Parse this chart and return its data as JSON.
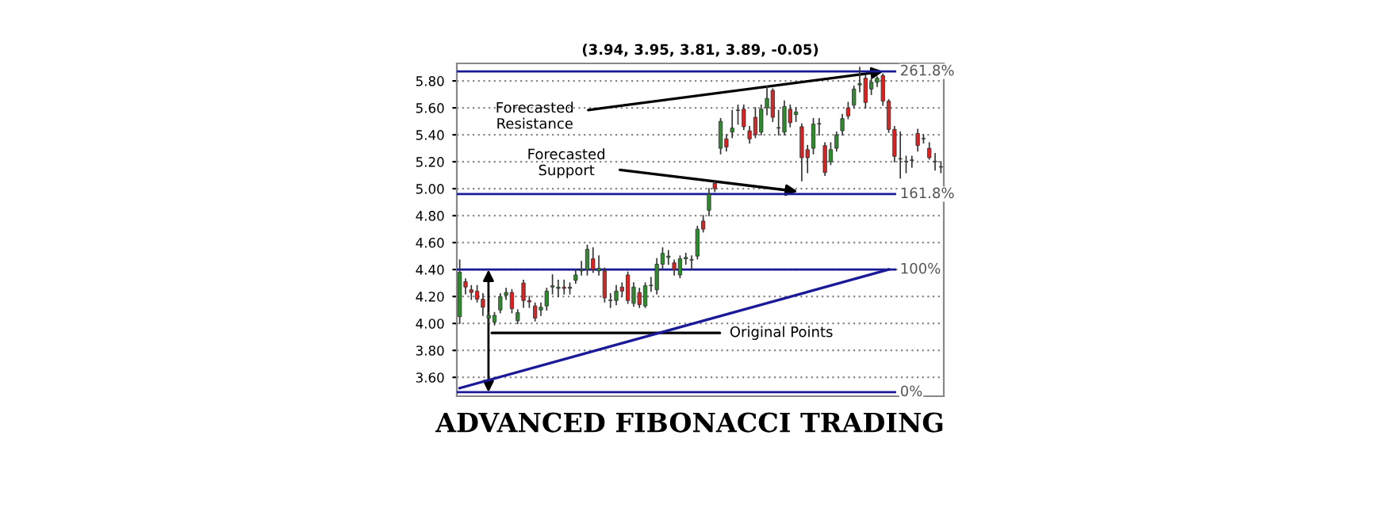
{
  "chart_data": {
    "type": "candlestick",
    "title": "(3.94, 3.95, 3.81, 3.89, -0.05)",
    "categories": [
      null,
      null,
      null,
      null,
      null,
      null,
      null,
      null,
      null,
      null,
      null,
      null,
      null,
      null,
      null,
      null,
      null,
      null,
      null,
      null,
      null,
      null,
      null,
      null,
      null,
      null,
      null,
      null,
      null,
      null,
      null,
      null,
      null,
      null,
      null,
      null,
      null,
      null,
      null,
      null,
      null,
      null,
      null,
      null,
      null,
      null,
      null,
      null,
      null,
      null,
      null,
      null,
      null,
      null,
      null,
      null,
      null,
      null,
      null,
      null,
      null,
      null,
      null,
      null,
      null,
      null,
      null,
      null,
      null,
      null,
      null,
      null,
      null,
      null,
      null,
      null,
      null,
      null,
      null,
      null,
      null,
      null,
      null,
      null
    ],
    "ohlc": [
      [
        4.05,
        4.47,
        4.0,
        4.38
      ],
      [
        4.31,
        4.33,
        4.22,
        4.27
      ],
      [
        4.25,
        4.28,
        4.18,
        4.23
      ],
      [
        4.24,
        4.28,
        4.16,
        4.18
      ],
      [
        4.18,
        4.22,
        4.06,
        4.12
      ],
      [
        4.04,
        4.08,
        4.0,
        4.06
      ],
      [
        4.01,
        4.08,
        3.99,
        4.06
      ],
      [
        4.1,
        4.22,
        4.08,
        4.2
      ],
      [
        4.21,
        4.26,
        4.18,
        4.23
      ],
      [
        4.23,
        4.25,
        4.08,
        4.11
      ],
      [
        4.02,
        4.1,
        4.0,
        4.08
      ],
      [
        4.3,
        4.32,
        4.12,
        4.17
      ],
      [
        4.17,
        4.2,
        4.12,
        4.16
      ],
      [
        4.13,
        4.15,
        4.02,
        4.04
      ],
      [
        4.1,
        4.15,
        4.06,
        4.12
      ],
      [
        4.13,
        4.26,
        4.1,
        4.24
      ],
      [
        4.27,
        4.36,
        4.22,
        4.28
      ],
      [
        4.26,
        4.32,
        4.2,
        4.27
      ],
      [
        4.27,
        4.32,
        4.22,
        4.26
      ],
      [
        4.26,
        4.3,
        4.22,
        4.27
      ],
      [
        4.32,
        4.4,
        4.3,
        4.36
      ],
      [
        4.39,
        4.46,
        4.36,
        4.4
      ],
      [
        4.4,
        4.58,
        4.36,
        4.55
      ],
      [
        4.48,
        4.56,
        4.38,
        4.4
      ],
      [
        4.39,
        4.5,
        4.36,
        4.41
      ],
      [
        4.39,
        4.41,
        4.16,
        4.19
      ],
      [
        4.17,
        4.22,
        4.12,
        4.17
      ],
      [
        4.17,
        4.28,
        4.14,
        4.24
      ],
      [
        4.27,
        4.3,
        4.2,
        4.24
      ],
      [
        4.36,
        4.38,
        4.15,
        4.17
      ],
      [
        4.15,
        4.3,
        4.13,
        4.27
      ],
      [
        4.23,
        4.26,
        4.12,
        4.14
      ],
      [
        4.13,
        4.3,
        4.12,
        4.28
      ],
      [
        4.28,
        4.34,
        4.24,
        4.28
      ],
      [
        4.25,
        4.48,
        4.22,
        4.44
      ],
      [
        4.44,
        4.56,
        4.4,
        4.52
      ],
      [
        4.49,
        4.54,
        4.44,
        4.5
      ],
      [
        4.45,
        4.47,
        4.36,
        4.4
      ],
      [
        4.36,
        4.5,
        4.34,
        4.48
      ],
      [
        4.48,
        4.52,
        4.44,
        4.49
      ],
      [
        4.47,
        4.5,
        4.4,
        4.47
      ],
      [
        4.5,
        4.72,
        4.48,
        4.7
      ],
      [
        4.76,
        4.8,
        4.68,
        4.7
      ],
      [
        4.84,
        5.0,
        4.8,
        4.96
      ],
      [
        5.04,
        5.06,
        4.98,
        5.0
      ],
      [
        5.3,
        5.52,
        5.26,
        5.5
      ],
      [
        5.37,
        5.4,
        5.28,
        5.31
      ],
      [
        5.42,
        5.58,
        5.38,
        5.45
      ],
      [
        5.58,
        5.62,
        5.48,
        5.58
      ],
      [
        5.59,
        5.62,
        5.44,
        5.46
      ],
      [
        5.43,
        5.46,
        5.34,
        5.37
      ],
      [
        5.53,
        5.6,
        5.38,
        5.4
      ],
      [
        5.42,
        5.62,
        5.4,
        5.59
      ],
      [
        5.6,
        5.76,
        5.55,
        5.67
      ],
      [
        5.73,
        5.74,
        5.5,
        5.53
      ],
      [
        5.45,
        5.58,
        5.4,
        5.45
      ],
      [
        5.42,
        5.65,
        5.4,
        5.61
      ],
      [
        5.59,
        5.62,
        5.46,
        5.49
      ],
      [
        5.55,
        5.6,
        5.5,
        5.57
      ],
      [
        5.46,
        5.48,
        5.06,
        5.23
      ],
      [
        5.29,
        5.32,
        5.12,
        5.23
      ],
      [
        5.3,
        5.52,
        5.26,
        5.48
      ],
      [
        5.48,
        5.52,
        5.4,
        5.48
      ],
      [
        5.32,
        5.34,
        5.1,
        5.12
      ],
      [
        5.2,
        5.34,
        5.18,
        5.29
      ],
      [
        5.3,
        5.42,
        5.28,
        5.4
      ],
      [
        5.43,
        5.55,
        5.4,
        5.52
      ],
      [
        5.6,
        5.64,
        5.52,
        5.54
      ],
      [
        5.62,
        5.76,
        5.6,
        5.74
      ],
      [
        5.77,
        5.9,
        5.72,
        5.78
      ],
      [
        5.82,
        5.84,
        5.6,
        5.64
      ],
      [
        5.74,
        5.82,
        5.7,
        5.79
      ],
      [
        5.79,
        5.83,
        5.76,
        5.82
      ],
      [
        5.84,
        5.85,
        5.62,
        5.65
      ],
      [
        5.65,
        5.66,
        5.42,
        5.44
      ],
      [
        5.44,
        5.46,
        5.2,
        5.24
      ],
      [
        5.22,
        5.42,
        5.08,
        5.22
      ],
      [
        5.2,
        5.24,
        5.12,
        5.2
      ],
      [
        5.21,
        5.24,
        5.16,
        5.21
      ],
      [
        5.41,
        5.44,
        5.28,
        5.32
      ],
      [
        5.37,
        5.4,
        5.34,
        5.37
      ],
      [
        5.3,
        5.34,
        5.22,
        5.23
      ],
      [
        5.2,
        5.26,
        5.14,
        5.2
      ],
      [
        5.16,
        5.2,
        5.12,
        5.16
      ]
    ],
    "colors": [
      "#2e8b2e",
      "#dd2222",
      "#dd2222",
      "#dd2222",
      "#dd2222",
      "#2e8b2e",
      "#2e8b2e",
      "#2e8b2e",
      "#2e8b2e",
      "#dd2222",
      "#2e8b2e",
      "#dd2222",
      "#dd2222",
      "#dd2222",
      "#2e8b2e",
      "#2e8b2e",
      "#2e8b2e",
      "#2e8b2e",
      "#dd2222",
      "#2e8b2e",
      "#2e8b2e",
      "#2e8b2e",
      "#2e8b2e",
      "#dd2222",
      "#2e8b2e",
      "#dd2222",
      "#2e8b2e",
      "#2e8b2e",
      "#dd2222",
      "#dd2222",
      "#2e8b2e",
      "#dd2222",
      "#2e8b2e",
      "#2e8b2e",
      "#2e8b2e",
      "#2e8b2e",
      "#2e8b2e",
      "#dd2222",
      "#2e8b2e",
      "#2e8b2e",
      "#2e8b2e",
      "#2e8b2e",
      "#dd2222",
      "#2e8b2e",
      "#dd2222",
      "#2e8b2e",
      "#dd2222",
      "#2e8b2e",
      "#2e8b2e",
      "#dd2222",
      "#dd2222",
      "#dd2222",
      "#2e8b2e",
      "#2e8b2e",
      "#dd2222",
      "#2e8b2e",
      "#2e8b2e",
      "#dd2222",
      "#2e8b2e",
      "#dd2222",
      "#dd2222",
      "#2e8b2e",
      "#2e8b2e",
      "#dd2222",
      "#2e8b2e",
      "#2e8b2e",
      "#2e8b2e",
      "#dd2222",
      "#2e8b2e",
      "#2e8b2e",
      "#dd2222",
      "#2e8b2e",
      "#2e8b2e",
      "#dd2222",
      "#dd2222",
      "#dd2222",
      "#2e8b2e",
      "#2e8b2e",
      "#2e8b2e",
      "#dd2222",
      "#2e8b2e",
      "#dd2222",
      "#2e8b2e",
      "#2e8b2e"
    ],
    "series": [
      {
        "type": "line",
        "values": [
          3.52,
          null,
          null,
          null,
          null,
          null,
          null,
          null,
          null,
          null,
          null,
          null,
          null,
          null,
          null,
          null,
          null,
          null,
          null,
          null,
          null,
          null,
          null,
          null,
          null,
          null,
          null,
          null,
          null,
          null,
          null,
          null,
          null,
          null,
          null,
          null,
          null,
          null,
          null,
          null,
          null,
          null,
          null,
          null,
          null,
          null,
          null,
          null,
          null,
          null,
          null,
          null,
          null,
          null,
          null,
          null,
          null,
          null,
          null,
          null,
          null,
          null,
          null,
          null,
          null,
          null,
          null,
          null,
          null,
          null,
          null,
          null,
          null,
          null,
          4.4,
          null,
          null,
          null,
          null,
          null,
          null,
          null,
          null,
          null
        ],
        "color": "#1a1a99"
      }
    ],
    "ref_lines": [
      {
        "axis": "y",
        "value": 5.87,
        "color": "#1a1a99"
      },
      {
        "axis": "y",
        "value": 4.96,
        "color": "#1a1a99"
      },
      {
        "axis": "y",
        "value": 4.4,
        "color": "#1a1a99"
      },
      {
        "axis": "y",
        "value": 3.49,
        "color": "#1a1a99"
      }
    ],
    "annotations": [
      "Forecasted\nResistance",
      "Forecasted\nSupport",
      "Original Points",
      "261.8%",
      "161.8%",
      "100%",
      "0%",
      "ADVANCED FIBONACCI TRADING"
    ],
    "ylim": [
      3.46,
      5.93
    ],
    "yticks": [
      {
        "value": 3.6,
        "label": "3.60"
      },
      {
        "value": 3.8,
        "label": "3.80"
      },
      {
        "value": 4.0,
        "label": "4.00"
      },
      {
        "value": 4.2,
        "label": "4.20"
      },
      {
        "value": 4.4,
        "label": "4.40"
      },
      {
        "value": 4.6,
        "label": "4.60"
      },
      {
        "value": 4.8,
        "label": "4.80"
      },
      {
        "value": 5.0,
        "label": "5.00"
      },
      {
        "value": 5.2,
        "label": "5.20"
      },
      {
        "value": 5.4,
        "label": "5.40"
      },
      {
        "value": 5.6,
        "label": "5.60"
      },
      {
        "value": 5.8,
        "label": "5.80"
      }
    ],
    "tick_labels": "y",
    "grid": "y"
  }
}
